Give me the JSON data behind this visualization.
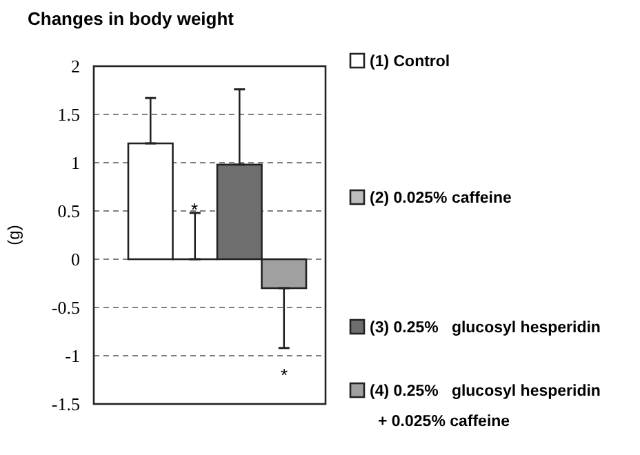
{
  "chart_data": {
    "type": "bar",
    "title": "Changes in body weight",
    "ylabel": "(g)",
    "categories": [
      null,
      null,
      null,
      null
    ],
    "series": [
      {
        "name": "(1) Control",
        "color": "#ffffff",
        "values": [
          1.2,
          null,
          null,
          null
        ],
        "errors": [
          [
            1.2,
            1.67
          ],
          null,
          null,
          null
        ]
      },
      {
        "name": "(2) 0.025% caffeine",
        "color": "#bdbdbd",
        "values": [
          null,
          0,
          null,
          null
        ],
        "errors": [
          null,
          [
            0,
            0.48
          ],
          null,
          null
        ]
      },
      {
        "name": "(3) 0.25%   glucosyl hesperidin",
        "color": "#6e6e6e",
        "values": [
          null,
          null,
          0.98,
          null
        ],
        "errors": [
          null,
          null,
          [
            0.98,
            1.76
          ],
          null
        ]
      },
      {
        "name": "(4) 0.25%   glucosyl hesperidin\n+ 0.025% caffeine",
        "color": "#a0a0a0",
        "values": [
          null,
          null,
          null,
          -0.3
        ],
        "errors": [
          null,
          null,
          null,
          [
            -0.92,
            -0.3
          ]
        ]
      }
    ],
    "ylim": [
      -1.5,
      2
    ],
    "yticks": [
      -1.5,
      -1,
      -0.5,
      0,
      0.5,
      1,
      1.5,
      2
    ],
    "grid": "y",
    "legend": "right",
    "annotations": [
      "*",
      "*"
    ]
  }
}
